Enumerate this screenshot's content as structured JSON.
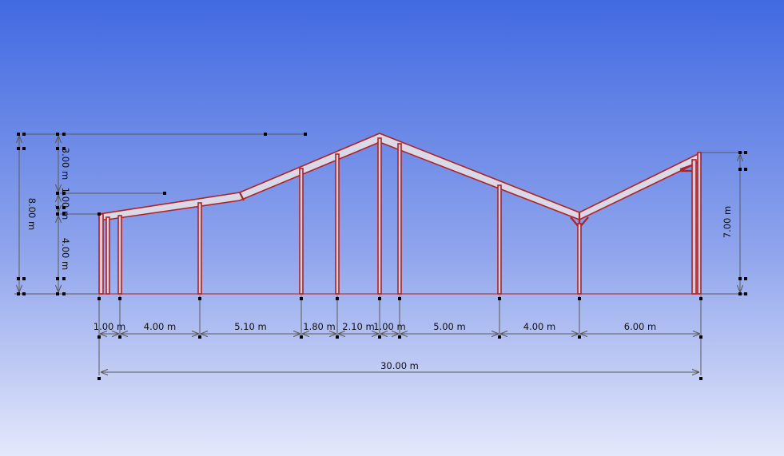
{
  "colors": {
    "frame": "#b22222",
    "dimension": "#5a5a5a",
    "handle": "#000000"
  },
  "bottom_dims": [
    "1.00 m",
    "4.00 m",
    "5.10 m",
    "1.80 m",
    "2.10 m",
    "1.00 m",
    "5.00 m",
    "4.00 m",
    "6.00 m"
  ],
  "total_dim": "30.00 m",
  "left_dims": {
    "total": "8.00 m",
    "top": "3.00 m",
    "middle": "1.00 m",
    "bottom": "4.00 m"
  },
  "right_dim": "7.00 m"
}
